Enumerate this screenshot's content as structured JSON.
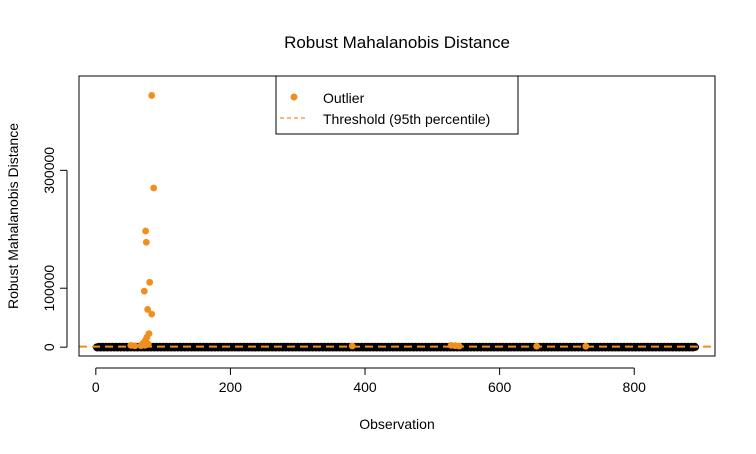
{
  "chart_data": {
    "type": "scatter",
    "title": "Robust Mahalanobis Distance",
    "xlabel": "Observation",
    "ylabel": "Robust Mahalanobis Distance",
    "xlim": [
      -25,
      920
    ],
    "ylim": [
      -15000,
      460000
    ],
    "xticks": [
      0,
      200,
      400,
      600,
      800
    ],
    "xtick_labels": [
      "0",
      "200",
      "400",
      "600",
      "800"
    ],
    "yticks": [
      0,
      100000,
      300000
    ],
    "ytick_labels": [
      "0",
      "100000",
      "300000"
    ],
    "n_observations": 891,
    "threshold": 1000,
    "grid": false,
    "legend": {
      "placement": "top-center",
      "entries": [
        {
          "label": "Outlier",
          "kind": "point",
          "color": "#f28e1c"
        },
        {
          "label": "Threshold (95th percentile)",
          "kind": "dashed-line",
          "color": "#f28e1c"
        }
      ]
    },
    "colors": {
      "normal": "#000000",
      "outlier": "#f28e1c",
      "threshold": "#f28e1c"
    },
    "outliers": [
      {
        "x": 83,
        "y": 427000
      },
      {
        "x": 86,
        "y": 270000
      },
      {
        "x": 74,
        "y": 197000
      },
      {
        "x": 75,
        "y": 178000
      },
      {
        "x": 80,
        "y": 110000
      },
      {
        "x": 72,
        "y": 95000
      },
      {
        "x": 77,
        "y": 64000
      },
      {
        "x": 83,
        "y": 56000
      },
      {
        "x": 79,
        "y": 23000
      },
      {
        "x": 76,
        "y": 17000
      },
      {
        "x": 74,
        "y": 12000
      },
      {
        "x": 72,
        "y": 9000
      },
      {
        "x": 70,
        "y": 6000
      },
      {
        "x": 68,
        "y": 4000
      },
      {
        "x": 73,
        "y": 3000
      },
      {
        "x": 78,
        "y": 5000
      },
      {
        "x": 67,
        "y": 2500
      },
      {
        "x": 52,
        "y": 3000
      },
      {
        "x": 58,
        "y": 2200
      },
      {
        "x": 381,
        "y": 2000
      },
      {
        "x": 528,
        "y": 3000
      },
      {
        "x": 534,
        "y": 2500
      },
      {
        "x": 540,
        "y": 1800
      },
      {
        "x": 655,
        "y": 1500
      },
      {
        "x": 728,
        "y": 1500
      }
    ]
  }
}
